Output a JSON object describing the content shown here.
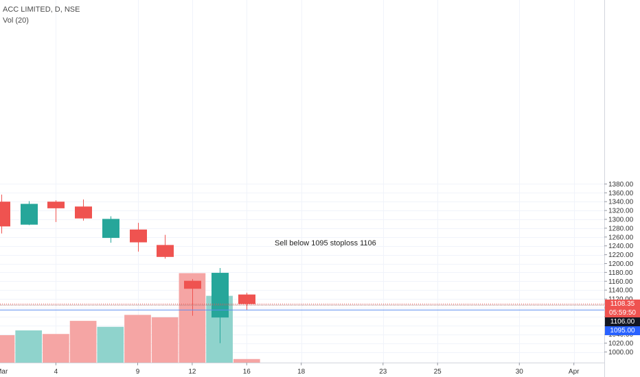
{
  "legend": {
    "symbol": "ACC LIMITED, D, NSE",
    "volume": "Vol (20)"
  },
  "annotation": "Sell below 1095 stoploss 1106",
  "price_labels": {
    "last": {
      "text": "1108.35",
      "color": "#ef5350"
    },
    "countdown": {
      "text": "05:59:50",
      "color": "#ef5350"
    },
    "stoploss": {
      "text": "1106.00",
      "color": "#131722"
    },
    "trigger": {
      "text": "1095.00",
      "color": "#2962ff"
    }
  },
  "colors": {
    "up": "#26a69a",
    "down": "#ef5350",
    "up_volume": "#8fd3cc",
    "down_volume": "#f5a5a4",
    "grid": "#f0f3fa"
  },
  "chart_data": {
    "type": "candlestick",
    "ylim": [
      990,
      1390
    ],
    "y_ticks": [
      1000,
      1020,
      1040,
      1060,
      1080,
      1100,
      1120,
      1140,
      1160,
      1180,
      1200,
      1220,
      1240,
      1260,
      1280,
      1300,
      1320,
      1340,
      1360,
      1380
    ],
    "y_tick_labels": [
      "1000.00",
      "1020.00",
      "1040.00",
      "1060.00",
      "1080.00",
      "1100.00",
      "1120.00",
      "1140.00",
      "1160.00",
      "1180.00",
      "1200.00",
      "1220.00",
      "1240.00",
      "1260.00",
      "1280.00",
      "1300.00",
      "1320.00",
      "1340.00",
      "1360.00",
      "1380.00"
    ],
    "x_labels": [
      {
        "text": "Mar",
        "slot": -0.2
      },
      {
        "text": "4",
        "slot": 2
      },
      {
        "text": "9",
        "slot": 5
      },
      {
        "text": "12",
        "slot": 7
      },
      {
        "text": "16",
        "slot": 9
      },
      {
        "text": "18",
        "slot": 11
      },
      {
        "text": "23",
        "slot": 14
      },
      {
        "text": "25",
        "slot": 16
      },
      {
        "text": "30",
        "slot": 19
      },
      {
        "text": "Apr",
        "slot": 21
      }
    ],
    "candles": [
      {
        "open": 1340,
        "high": 1356,
        "low": 1268,
        "close": 1284
      },
      {
        "open": 1288,
        "high": 1341,
        "low": 1287,
        "close": 1335
      },
      {
        "open": 1340,
        "high": 1343,
        "low": 1294,
        "close": 1325
      },
      {
        "open": 1329,
        "high": 1345,
        "low": 1297,
        "close": 1302
      },
      {
        "open": 1258,
        "high": 1307,
        "low": 1247,
        "close": 1301
      },
      {
        "open": 1277,
        "high": 1292,
        "low": 1227,
        "close": 1248
      },
      {
        "open": 1242,
        "high": 1265,
        "low": 1211,
        "close": 1215
      },
      {
        "open": 1161,
        "high": 1165,
        "low": 1082,
        "close": 1143
      },
      {
        "open": 1078,
        "high": 1190,
        "low": 1020,
        "close": 1179
      },
      {
        "open": 1130,
        "high": 1134,
        "low": 1095,
        "close": 1108.35
      }
    ],
    "volumes": [
      0.23,
      0.27,
      0.24,
      0.35,
      0.3,
      0.4,
      0.38,
      0.75,
      0.56,
      0.03
    ],
    "hlines": {
      "last": 1108.35,
      "stoploss": 1106.0,
      "trigger": 1095.0
    }
  }
}
